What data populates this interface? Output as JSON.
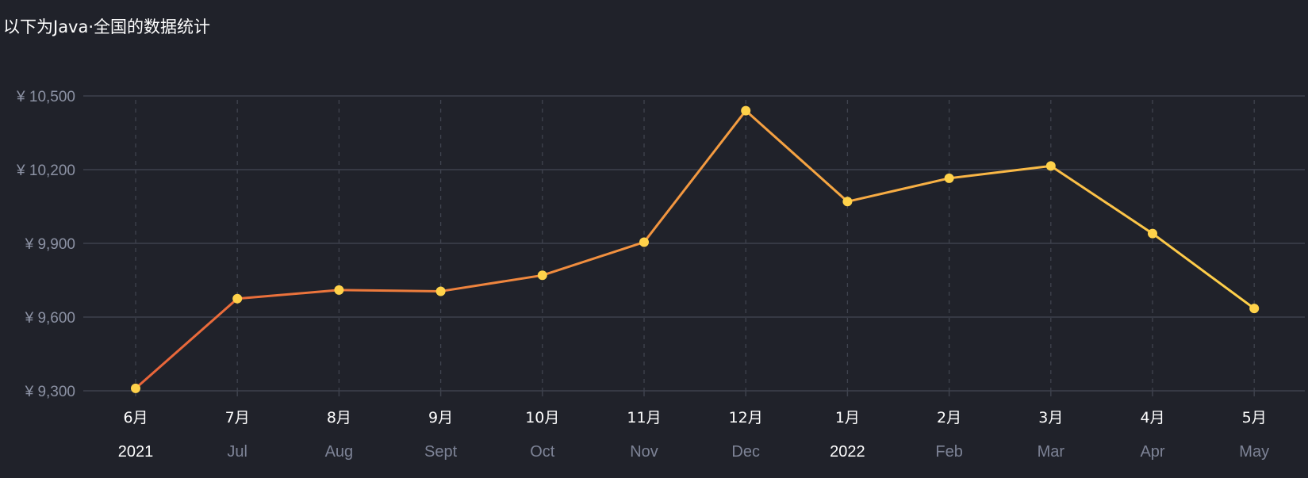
{
  "chart_data": {
    "type": "line",
    "title": "以下为Java·全国的数据统计",
    "categories": [
      "6月",
      "7月",
      "8月",
      "9月",
      "10月",
      "11月",
      "12月",
      "1月",
      "2月",
      "3月",
      "4月",
      "5月"
    ],
    "sub_labels": [
      "2021",
      "Jul",
      "Aug",
      "Sept",
      "Oct",
      "Nov",
      "Dec",
      "2022",
      "Feb",
      "Mar",
      "Apr",
      "May"
    ],
    "sub_label_is_year": [
      true,
      false,
      false,
      false,
      false,
      false,
      false,
      true,
      false,
      false,
      false,
      false
    ],
    "series": [
      {
        "values": [
          9310,
          9675,
          9710,
          9705,
          9770,
          9905,
          10440,
          10070,
          10165,
          10215,
          9940,
          9635
        ]
      }
    ],
    "y_ticks": [
      9300,
      9600,
      9900,
      10200,
      10500
    ],
    "y_tick_labels": [
      "¥ 9,300",
      "¥ 9,600",
      "¥ 9,900",
      "¥ 10,200",
      "¥ 10,500"
    ],
    "ylim": [
      9300,
      10500
    ],
    "grid": true,
    "colors": {
      "line_start": "#e8643a",
      "line_end": "#ffd24a",
      "point": "#ffd24a",
      "grid": "#3d414c",
      "vgrid": "#3f434e"
    }
  }
}
